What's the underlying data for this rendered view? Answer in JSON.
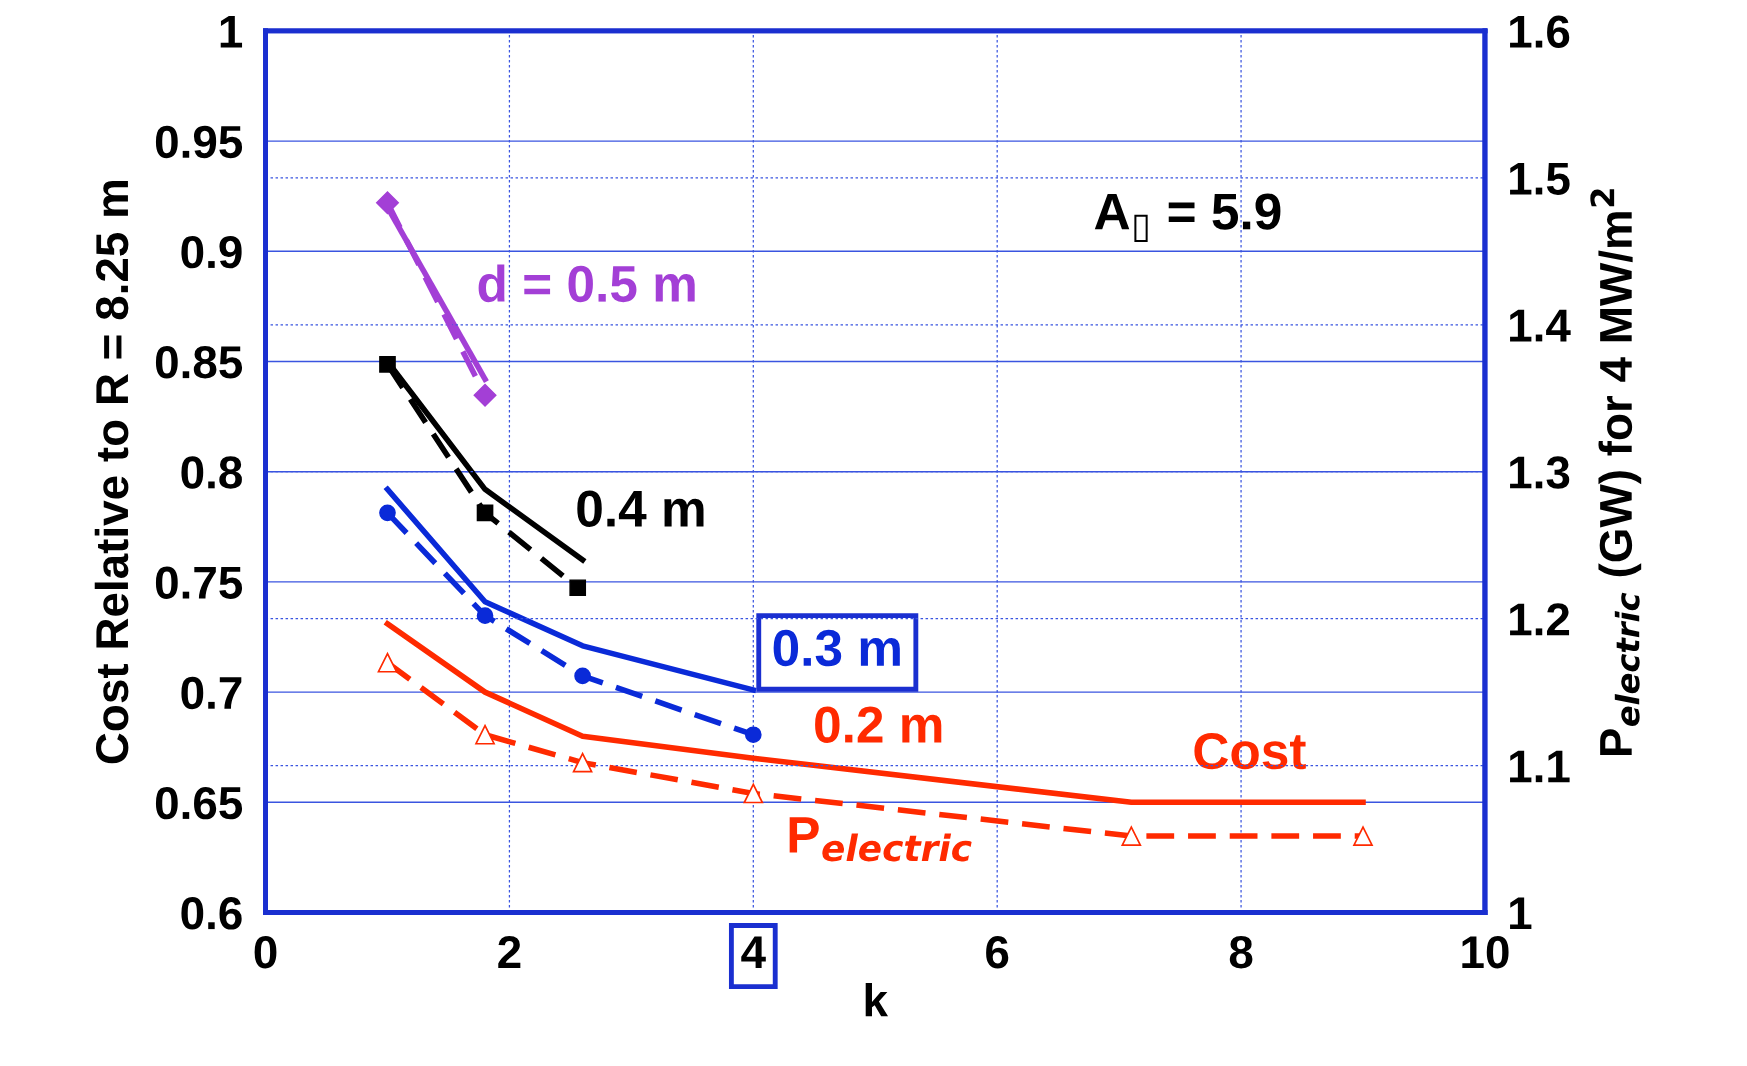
{
  "chart_data": {
    "type": "line",
    "xlabel": "k",
    "ylabel": "Cost Relative to R = 8.25 m",
    "y2label": "P$_{electric}$ (GW) for 4 MW/m$^{2}$",
    "xlim": [
      0,
      10
    ],
    "xticks": [
      0,
      2,
      4,
      6,
      8,
      10
    ],
    "ylim": [
      0.6,
      1
    ],
    "yticks": [
      0.6,
      0.65,
      0.7,
      0.75,
      0.8,
      0.85,
      0.9,
      0.95,
      1
    ],
    "y2lim": [
      1,
      1.6
    ],
    "y2ticks": [
      1,
      1.1,
      1.2,
      1.3,
      1.4,
      1.5,
      1.6
    ],
    "grid": true,
    "series": [
      {
        "color": "#a33fd6",
        "x": [
          1,
          1.8
        ],
        "values": [
          0.92,
          0.842
        ],
        "line_style": "solid",
        "marker": "none"
      },
      {
        "color": "#a33fd6",
        "x": [
          1,
          1.8
        ],
        "values": [
          1.483,
          1.352
        ],
        "axis": "y2",
        "line_style": "dashed",
        "marker": "diamond"
      },
      {
        "color": "#000000",
        "x": [
          1,
          1.8,
          2.6
        ],
        "values": [
          0.85,
          0.792,
          0.76
        ],
        "line_style": "solid",
        "marker": "none"
      },
      {
        "color": "#000000",
        "x": [
          1,
          1.8,
          2.56
        ],
        "values": [
          1.373,
          1.272,
          1.221
        ],
        "axis": "y2",
        "line_style": "dashed",
        "marker": "square"
      },
      {
        "color": "#0a2ad8",
        "x": [
          1,
          1.8,
          2.6,
          4
        ],
        "values": [
          0.792,
          0.741,
          0.721,
          0.701
        ],
        "line_style": "solid",
        "marker": "none"
      },
      {
        "color": "#0a2ad8",
        "x": [
          1,
          1.8,
          2.6,
          4
        ],
        "values": [
          1.272,
          1.202,
          1.161,
          1.121
        ],
        "axis": "y2",
        "line_style": "dashed",
        "marker": "circle"
      },
      {
        "color": "#ff2a00",
        "x": [
          1,
          1.8,
          2.6,
          4,
          7.1,
          9
        ],
        "values": [
          0.731,
          0.7,
          0.68,
          0.67,
          0.65,
          0.65
        ],
        "line_style": "solid",
        "marker": "none"
      },
      {
        "color": "#ff2a00",
        "x": [
          1,
          1.8,
          2.6,
          4,
          7.1,
          9
        ],
        "values": [
          1.17,
          1.121,
          1.102,
          1.081,
          1.052,
          1.052
        ],
        "axis": "y2",
        "line_style": "dashed",
        "marker": "triangle"
      }
    ],
    "annotations": [
      "d = 0.5 m",
      "0.4 m",
      "0.3 m",
      "0.2 m",
      "Cost",
      "P$_{electric}$",
      "A$_{▯}$ = 5.9"
    ]
  }
}
